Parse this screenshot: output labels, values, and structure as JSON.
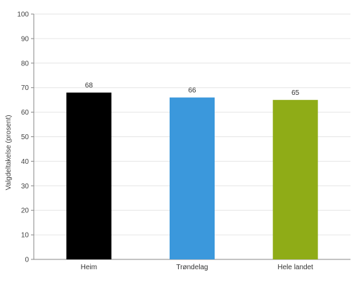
{
  "chart_data": {
    "type": "bar",
    "categories": [
      "Heim",
      "Trøndelag",
      "Hele landet"
    ],
    "values": [
      68,
      66,
      65
    ],
    "data_labels": [
      "68",
      "66",
      "65"
    ],
    "colors": [
      "#000000",
      "#3b98dc",
      "#8fac17"
    ],
    "title": "",
    "xlabel": "",
    "ylabel": "Valgdeltakelse (prosent)",
    "ylim": [
      0,
      100
    ],
    "yticks": [
      0,
      10,
      20,
      30,
      40,
      50,
      60,
      70,
      80,
      90,
      100
    ],
    "grid": true,
    "legend": "none"
  }
}
